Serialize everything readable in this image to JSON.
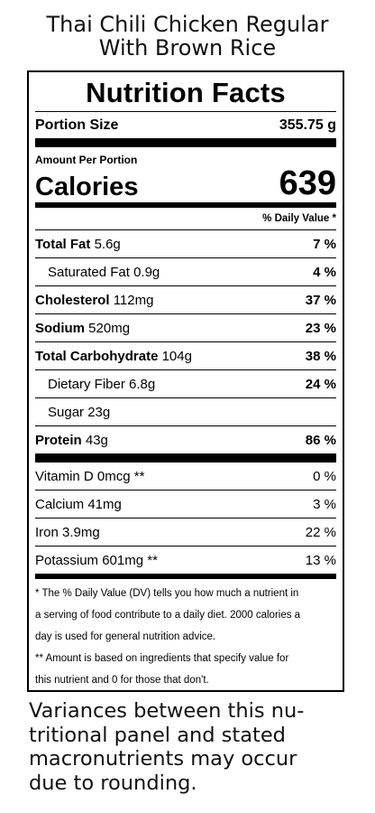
{
  "title": {
    "line1": "Thai Chili Chicken Regular",
    "line2": "With Brown Rice"
  },
  "label": {
    "heading": "Nutrition Facts",
    "portion_size_label": "Portion Size",
    "portion_size_value": "355.75 g",
    "amount_per_portion": "Amount Per Portion",
    "calories_label": "Calories",
    "calories_value": "639",
    "daily_value_header": "% Daily Value *",
    "nutrients": [
      {
        "name": "Total Fat",
        "amount": "5.6g",
        "dv": "7 %"
      },
      {
        "name": "Saturated Fat",
        "amount": "0.9g",
        "dv": "4 %"
      },
      {
        "name": "Cholesterol",
        "amount": "112mg",
        "dv": "37 %"
      },
      {
        "name": "Sodium",
        "amount": "520mg",
        "dv": "23 %"
      },
      {
        "name": "Total Carbohydrate",
        "amount": "104g",
        "dv": "38 %"
      },
      {
        "name": "Dietary Fiber",
        "amount": "6.8g",
        "dv": "24 %"
      },
      {
        "name": "Sugar",
        "amount": "23g",
        "dv": ""
      },
      {
        "name": "Protein",
        "amount": "43g",
        "dv": "86 %"
      }
    ],
    "vitamins": [
      {
        "text": "Vitamin D 0mcg **",
        "dv": "0 %"
      },
      {
        "text": "Calcium 41mg",
        "dv": "3 %"
      },
      {
        "text": "Iron 3.9mg",
        "dv": "22 %"
      },
      {
        "text": "Potassium 601mg **",
        "dv": "13 %"
      }
    ],
    "footnote_lines": [
      "* The % Daily Value (DV) tells you how much a nutrient in",
      "a serving of food contribute to a daily diet. 2000 calories a",
      "day is used for general nutrition advice.",
      "** Amount is based on ingredients that specify value for",
      "this nutrient and 0 for those that don't."
    ]
  },
  "variance_lines": [
    "Variances between this nu-",
    "tritional panel and stated",
    "macronutrients may occur",
    "due to rounding."
  ]
}
